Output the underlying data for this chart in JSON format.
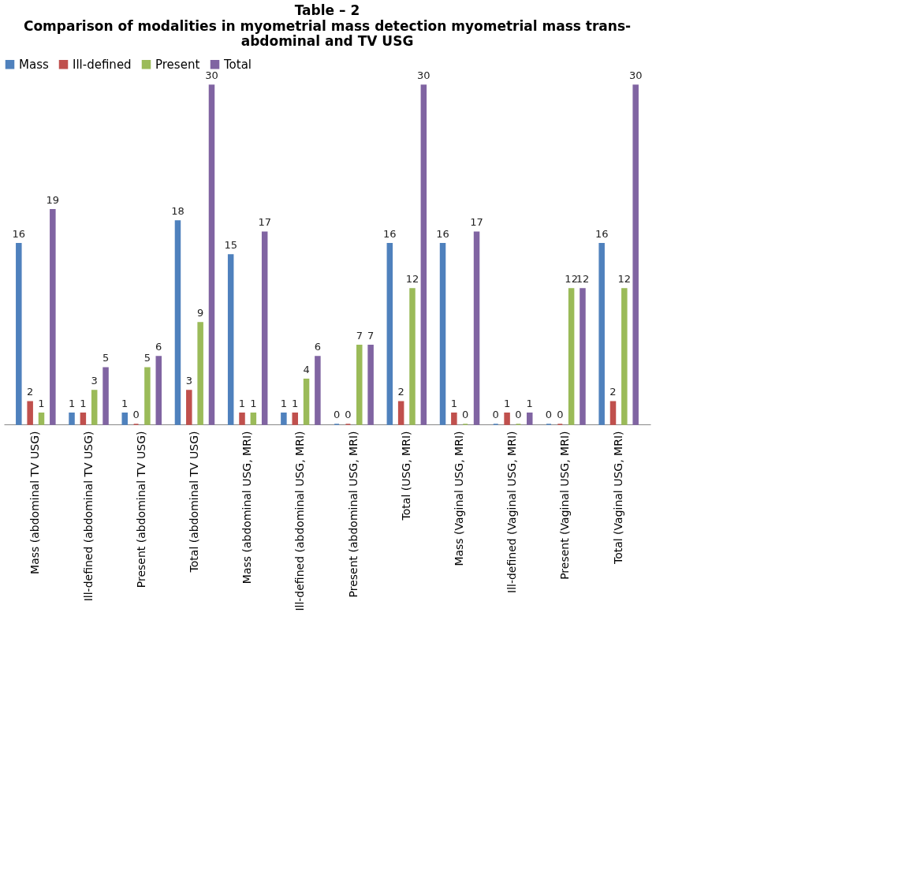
{
  "chart_data": {
    "type": "bar",
    "title": "Table – 2",
    "subtitle": "Comparison of modalities in myometrial mass detection myometrial mass trans-abdominal and TV USG",
    "categories": [
      "Mass (abdominal TV USG)",
      "Ill-defined (abdominal TV USG)",
      "Present (abdominal TV USG)",
      "Total (abdominal TV USG)",
      "Mass (abdominal USG, MRI)",
      "Ill-defined (abdominal USG, MRI)",
      "Present (abdominal USG, MRI)",
      "Total (USG, MRI)",
      "Mass (Vaginal USG, MRI)",
      "Ill-defined (Vaginal USG, MRI)",
      "Present (Vaginal USG, MRI)",
      "Total (Vaginal USG, MRI)"
    ],
    "series": [
      {
        "name": "Mass",
        "color": "#4f81bd",
        "values": [
          16,
          1,
          1,
          18,
          15,
          1,
          0,
          16,
          16,
          0,
          0,
          16
        ]
      },
      {
        "name": "Ill-defined",
        "color": "#c0504d",
        "values": [
          2,
          1,
          0,
          3,
          1,
          1,
          0,
          2,
          1,
          1,
          0,
          2
        ]
      },
      {
        "name": "Present",
        "color": "#9bbb59",
        "values": [
          1,
          3,
          5,
          9,
          1,
          4,
          7,
          12,
          0,
          0,
          12,
          12
        ]
      },
      {
        "name": "Total",
        "color": "#8064a2",
        "values": [
          19,
          5,
          6,
          30,
          17,
          6,
          7,
          30,
          17,
          1,
          12,
          30
        ]
      }
    ],
    "data_labels": true,
    "legend": "top",
    "grid": false
  }
}
